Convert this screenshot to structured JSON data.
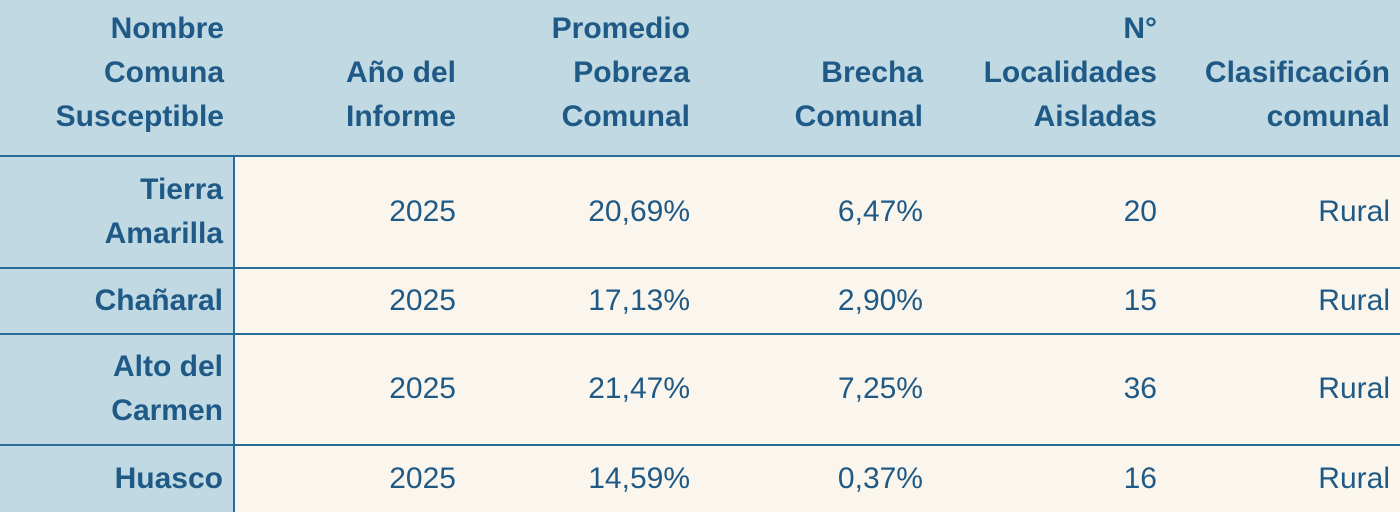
{
  "headers": [
    [
      "Nombre",
      "Comuna",
      "Susceptible"
    ],
    [
      "Año del",
      "Informe"
    ],
    [
      "Promedio",
      "Pobreza",
      "Comunal"
    ],
    [
      "Brecha",
      "Comunal"
    ],
    [
      "N°",
      "Localidades",
      "Aisladas"
    ],
    [
      "Clasificación",
      "comunal"
    ]
  ],
  "rows": [
    {
      "name": [
        "Tierra",
        "Amarilla"
      ],
      "year": "2025",
      "poverty": "20,69%",
      "gap": "6,47%",
      "isolated": "20",
      "classification": "Rural"
    },
    {
      "name": [
        "Chañaral"
      ],
      "year": "2025",
      "poverty": "17,13%",
      "gap": "2,90%",
      "isolated": "15",
      "classification": "Rural"
    },
    {
      "name": [
        "Alto del",
        "Carmen"
      ],
      "year": "2025",
      "poverty": "21,47%",
      "gap": "7,25%",
      "isolated": "36",
      "classification": "Rural"
    },
    {
      "name": [
        "Huasco"
      ],
      "year": "2025",
      "poverty": "14,59%",
      "gap": "0,37%",
      "isolated": "16",
      "classification": "Rural"
    }
  ],
  "colors": {
    "header_bg": "#c0d9e3",
    "body_bg": "#faf6ed",
    "text": "#1f5a87",
    "border": "#2a6c98"
  }
}
